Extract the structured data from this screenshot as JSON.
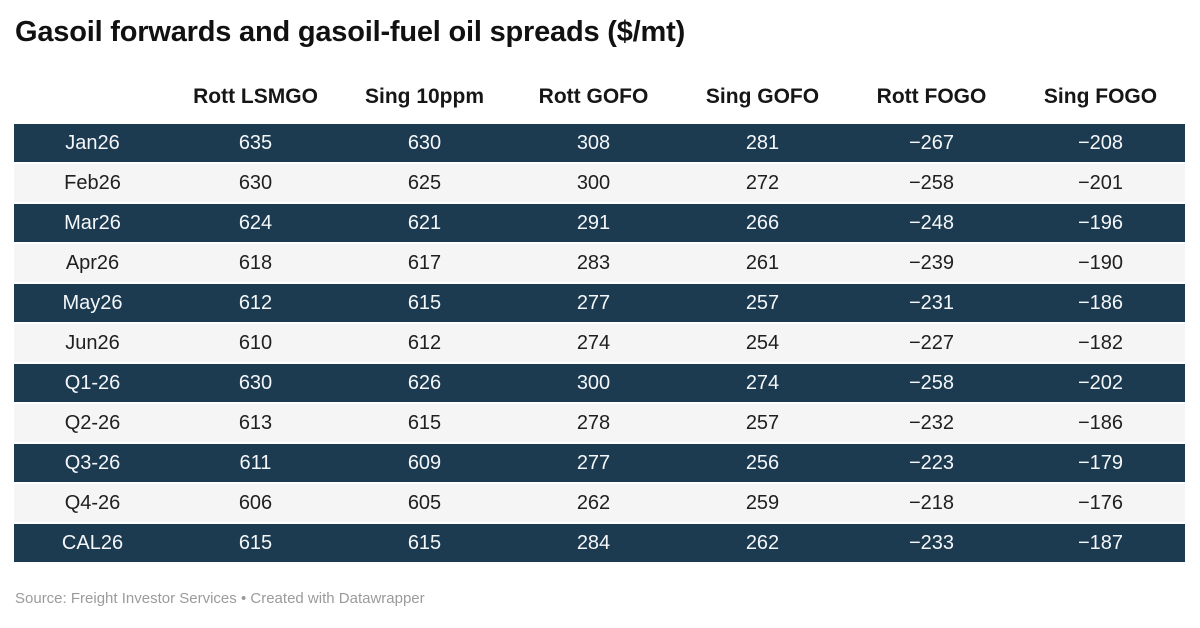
{
  "title": "Gasoil forwards and gasoil-fuel oil spreads ($/mt)",
  "chart_data": {
    "type": "table",
    "columns": [
      "",
      "Rott LSMGO",
      "Sing 10ppm",
      "Rott GOFO",
      "Sing GOFO",
      "Rott FOGO",
      "Sing FOGO"
    ],
    "rows": [
      {
        "label": "Jan26",
        "values": [
          "635",
          "630",
          "308",
          "281",
          "−267",
          "−208"
        ]
      },
      {
        "label": "Feb26",
        "values": [
          "630",
          "625",
          "300",
          "272",
          "−258",
          "−201"
        ]
      },
      {
        "label": "Mar26",
        "values": [
          "624",
          "621",
          "291",
          "266",
          "−248",
          "−196"
        ]
      },
      {
        "label": "Apr26",
        "values": [
          "618",
          "617",
          "283",
          "261",
          "−239",
          "−190"
        ]
      },
      {
        "label": "May26",
        "values": [
          "612",
          "615",
          "277",
          "257",
          "−231",
          "−186"
        ]
      },
      {
        "label": "Jun26",
        "values": [
          "610",
          "612",
          "274",
          "254",
          "−227",
          "−182"
        ]
      },
      {
        "label": "Q1-26",
        "values": [
          "630",
          "626",
          "300",
          "274",
          "−258",
          "−202"
        ]
      },
      {
        "label": "Q2-26",
        "values": [
          "613",
          "615",
          "278",
          "257",
          "−232",
          "−186"
        ]
      },
      {
        "label": "Q3-26",
        "values": [
          "611",
          "609",
          "277",
          "256",
          "−223",
          "−179"
        ]
      },
      {
        "label": "Q4-26",
        "values": [
          "606",
          "605",
          "262",
          "259",
          "−218",
          "−176"
        ]
      },
      {
        "label": "CAL26",
        "values": [
          "615",
          "615",
          "284",
          "262",
          "−233",
          "−187"
        ]
      }
    ],
    "layout_hints": {
      "row_striping": "alternating starting dark",
      "alignment": "all columns center-aligned",
      "units": "$/mt"
    }
  },
  "footer": {
    "source_label": "Source:",
    "source_name": "Freight Investor Services",
    "separator": "•",
    "attribution": "Created with Datawrapper"
  },
  "colors": {
    "background": "#ffffff",
    "dark_row_bg": "#1c3a50",
    "dark_row_text": "#f4f7f9",
    "light_row_bg": "#f5f5f5",
    "light_row_text": "#202020",
    "header_text": "#161616",
    "title_text": "#111111",
    "footer_text": "#9b9b9b"
  }
}
